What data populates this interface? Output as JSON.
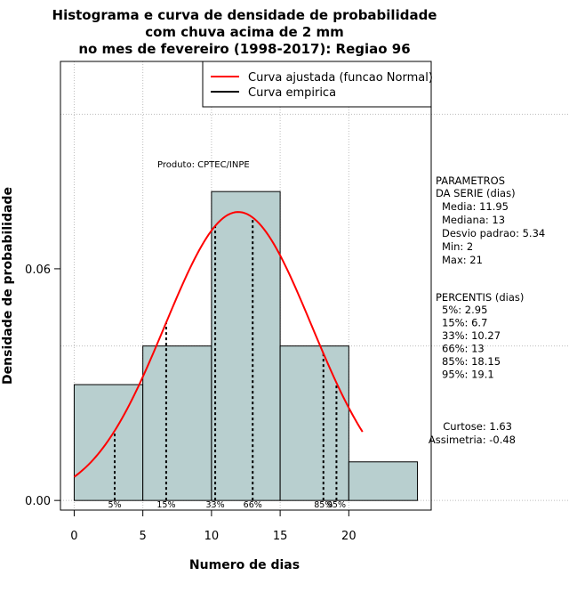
{
  "chart_data": {
    "type": "histogram",
    "title_lines": [
      "Histograma e curva de densidade de probabilidade",
      "com chuva acima de 2 mm",
      "no mes de fevereiro (1998-2017): Regiao 96"
    ],
    "xlabel": "Numero de dias",
    "ylabel": "Densidade de probabilidade",
    "xlim": [
      -1,
      26
    ],
    "ylim": [
      -0.0025,
      0.1137
    ],
    "x_ticks": [
      0,
      5,
      10,
      15,
      20
    ],
    "y_ticks": [
      0.0,
      0.06
    ],
    "y_tick_labels": [
      "0.00",
      "0.06"
    ],
    "grid_y": [
      0.0,
      0.04,
      0.1
    ],
    "grid_x": [
      0,
      5,
      10,
      15,
      20
    ],
    "bins": [
      {
        "start": 0,
        "end": 5,
        "density": 0.03
      },
      {
        "start": 5,
        "end": 10,
        "density": 0.04
      },
      {
        "start": 10,
        "end": 15,
        "density": 0.08
      },
      {
        "start": 15,
        "end": 20,
        "density": 0.04
      },
      {
        "start": 20,
        "end": 25,
        "density": 0.01
      }
    ],
    "bar_color": "#b8cfcf",
    "curve_color": "#ff0000",
    "normal_fit": {
      "mean": 11.95,
      "sd": 5.34,
      "x_from": 0,
      "x_to": 21
    },
    "percentiles": [
      {
        "label": "5%",
        "value": 2.95
      },
      {
        "label": "15%",
        "value": 6.7
      },
      {
        "label": "33%",
        "value": 10.27
      },
      {
        "label": "66%",
        "value": 13
      },
      {
        "label": "85%",
        "value": 18.15
      },
      {
        "label": "95%",
        "value": 19.1
      }
    ],
    "legend": {
      "position": "top-right",
      "items": [
        {
          "label": "Curva ajustada (funcao Normal)",
          "color": "#ff0000"
        },
        {
          "label": "Curva empirica",
          "color": "#000000"
        }
      ]
    },
    "credit": "Produto: CPTEC/INPE",
    "stats_block": {
      "heading": [
        "PARAMETROS",
        "DA SERIE (dias)"
      ],
      "lines": [
        "Media: 11.95",
        "Mediana: 13",
        "Desvio padrao: 5.34",
        "Min: 2",
        "Max: 21"
      ]
    },
    "percentis_block": {
      "heading": "PERCENTIS (dias)",
      "lines": [
        "5%: 2.95",
        "15%: 6.7",
        "33%: 10.27",
        "66%: 13",
        "85%: 18.15",
        "95%: 19.1"
      ]
    },
    "shape_block": {
      "lines": [
        "Curtose: 1.63",
        "Assimetria: -0.48"
      ]
    }
  }
}
